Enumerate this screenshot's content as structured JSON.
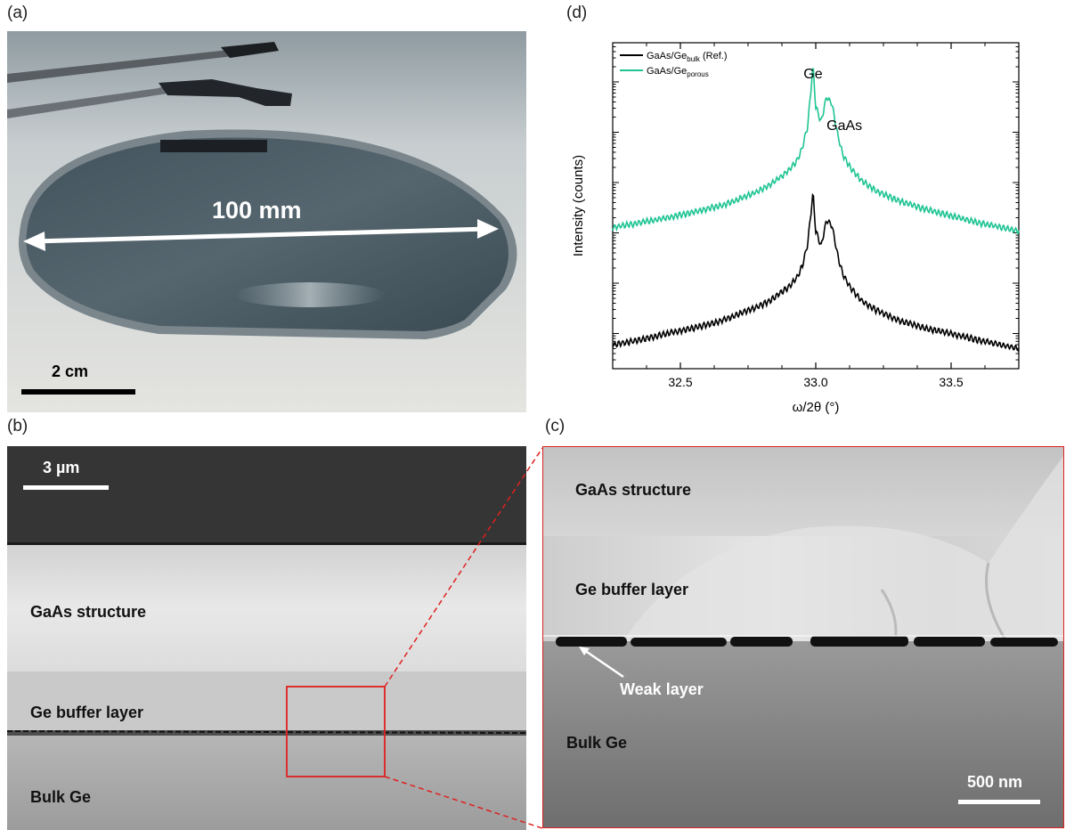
{
  "figure": {
    "panel_a": {
      "label": "(a)",
      "dimension_label": "100 mm",
      "scale_bar_label": "2 cm"
    },
    "panel_b": {
      "label": "(b)",
      "scale_bar_label": "3 µm",
      "layer_labels": [
        "GaAs structure",
        "Ge buffer layer",
        "Bulk Ge"
      ]
    },
    "panel_c": {
      "label": "(c)",
      "scale_bar_label": "500 nm",
      "layer_labels": [
        "GaAs structure",
        "Ge buffer layer",
        "Bulk Ge"
      ],
      "arrow_label": "Weak layer"
    },
    "panel_d": {
      "label": "(d)"
    }
  },
  "colors": {
    "reference_series": "#000000",
    "porous_series": "#1fc493",
    "zoom_box": "#e02020"
  },
  "chart_data": {
    "type": "line",
    "title": "",
    "xlabel": "ω/2θ (°)",
    "ylabel": "Intensity (counts)",
    "xlim": [
      32.25,
      33.75
    ],
    "x_ticks": [
      32.5,
      33.0,
      33.5
    ],
    "x_tick_labels": [
      "32.5",
      "33.0",
      "33.5"
    ],
    "y_scale": "log",
    "y_tick_labels_shown": false,
    "legend_position": "top-left",
    "legend": [
      {
        "base": "GaAs/Ge",
        "sub": "bulk",
        "suffix": " (Ref.)"
      },
      {
        "base": "GaAs/Ge",
        "sub": "porous",
        "suffix": ""
      }
    ],
    "annotations": [
      "Ge",
      "GaAs"
    ],
    "series": [
      {
        "x": [
          32.25,
          32.35,
          32.45,
          32.55,
          32.65,
          32.72,
          32.78,
          32.83,
          32.87,
          32.9,
          32.93,
          32.95,
          32.97,
          32.99,
          33.0,
          33.02,
          33.04,
          33.06,
          33.08,
          33.1,
          33.13,
          33.17,
          33.22,
          33.3,
          33.4,
          33.5,
          33.6,
          33.75
        ],
        "y": [
          0.06,
          0.075,
          0.1,
          0.13,
          0.18,
          0.25,
          0.33,
          0.45,
          0.65,
          0.85,
          1.3,
          2.2,
          6.0,
          62.0,
          11.0,
          5.5,
          18.0,
          14.0,
          3.8,
          1.5,
          0.8,
          0.45,
          0.3,
          0.19,
          0.13,
          0.1,
          0.075,
          0.05
        ]
      },
      {
        "x": [
          32.25,
          32.35,
          32.45,
          32.55,
          32.65,
          32.72,
          32.78,
          32.83,
          32.87,
          32.9,
          32.93,
          32.95,
          32.97,
          32.99,
          33.0,
          33.02,
          33.04,
          33.06,
          33.08,
          33.1,
          33.13,
          33.17,
          33.22,
          33.3,
          33.4,
          33.5,
          33.6,
          33.75
        ],
        "y": [
          13.0,
          16.0,
          20.0,
          26.0,
          35.0,
          48.0,
          65.0,
          90.0,
          130.0,
          175.0,
          270.0,
          480.0,
          1300.0,
          21000.0,
          3200.0,
          1600.0,
          5200.0,
          3600.0,
          950.0,
          360.0,
          190.0,
          110.0,
          70.0,
          45.0,
          30.0,
          22.0,
          16.0,
          11.0
        ]
      }
    ]
  }
}
